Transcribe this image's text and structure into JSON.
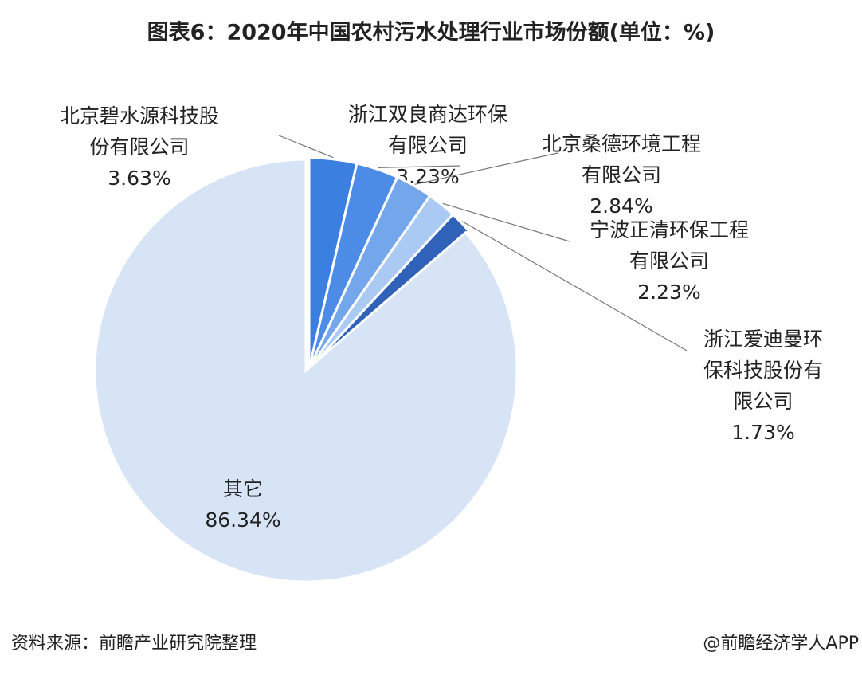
{
  "chart_data": {
    "type": "pie",
    "title": "图表6：2020年中国农村污水处理行业市场份额(单位：%)",
    "categories": [
      "北京碧水源科技股份有限公司",
      "浙江双良商达环保有限公司",
      "北京桑德环境工程有限公司",
      "宁波正清环保工程有限公司",
      "浙江爱迪曼环保科技股份有限公司",
      "其它"
    ],
    "values": [
      3.63,
      3.23,
      2.84,
      2.23,
      1.73,
      86.34
    ],
    "value_labels": [
      "3.63%",
      "3.23%",
      "2.84%",
      "2.23%",
      "1.73%",
      "86.34%"
    ],
    "colors": [
      "#3b7fe0",
      "#4d8ce6",
      "#74a6ec",
      "#abcaf3",
      "#2f62b8",
      "#d7e4f6"
    ]
  },
  "footer": {
    "source": "资料来源：前瞻产业研究院整理",
    "brand": "@前瞻经济学人APP"
  }
}
